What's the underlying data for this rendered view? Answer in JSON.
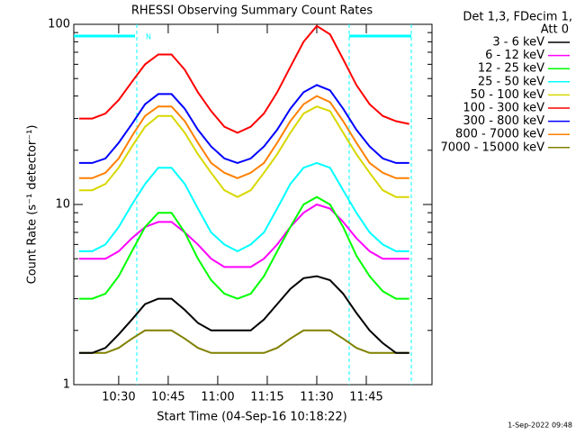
{
  "chart_data": {
    "type": "line",
    "title": "RHESSI Observing Summary Count Rates",
    "x_label": "Start Time (04-Sep-16 10:18:22)",
    "y_label": "Count Rate (s⁻¹ detector⁻¹)",
    "legend_title": [
      "Det 1,3, FDecim 1,",
      "Att 0"
    ],
    "annotation": "N",
    "timestamp": "1-Sep-2022 09:48",
    "log_y": true,
    "legend": "right",
    "xlim": [
      616.4,
      724.9
    ],
    "ylim": [
      1,
      100
    ],
    "xticks": [
      {
        "value": 630,
        "label": "10:30"
      },
      {
        "value": 645,
        "label": "10:45"
      },
      {
        "value": 660,
        "label": "11:00"
      },
      {
        "value": 675,
        "label": "11:15"
      },
      {
        "value": 690,
        "label": "11:30"
      },
      {
        "value": 705,
        "label": "11:45"
      }
    ],
    "yticks": [
      1,
      10,
      100
    ],
    "x": [
      618,
      622,
      626,
      630,
      634,
      638,
      642,
      646,
      650,
      654,
      658,
      662,
      666,
      670,
      674,
      678,
      682,
      686,
      690,
      694,
      698,
      702,
      706,
      710,
      714,
      718
    ],
    "series": [
      {
        "name": "3 - 6 keV",
        "color": "#000000",
        "values": [
          1.5,
          1.5,
          1.6,
          1.9,
          2.3,
          2.8,
          3,
          3,
          2.6,
          2.2,
          2,
          2,
          2,
          2,
          2.3,
          2.8,
          3.4,
          3.9,
          4,
          3.8,
          3.2,
          2.5,
          2,
          1.7,
          1.5,
          1.5
        ]
      },
      {
        "name": "6 - 12 keV",
        "color": "#ff00ff",
        "values": [
          5,
          5,
          5,
          5.5,
          6.5,
          7.5,
          8,
          8,
          7,
          6,
          5,
          4.5,
          4.5,
          4.5,
          5,
          6,
          7.5,
          9,
          10,
          9.5,
          8,
          6.5,
          5.5,
          5,
          5,
          5
        ]
      },
      {
        "name": "12 - 25 keV",
        "color": "#00ff00",
        "values": [
          3,
          3,
          3.2,
          4,
          5.5,
          7.5,
          9,
          9,
          7,
          5,
          3.8,
          3.2,
          3,
          3.2,
          4,
          5.5,
          7.5,
          10,
          11,
          10,
          7.5,
          5.2,
          4,
          3.3,
          3,
          3
        ]
      },
      {
        "name": "25 - 50 keV",
        "color": "#00ffff",
        "values": [
          5.5,
          5.5,
          6,
          7.5,
          10,
          13,
          16,
          16,
          13,
          9.5,
          7,
          6,
          5.5,
          6,
          7,
          9.5,
          13,
          16,
          17,
          16,
          12,
          9,
          7,
          6,
          5.5,
          5.5
        ]
      },
      {
        "name": "50 - 100 keV",
        "color": "#d8d800",
        "values": [
          12,
          12,
          13,
          16,
          21,
          27,
          31,
          31,
          25,
          19,
          15,
          12,
          11,
          12,
          15,
          19,
          25,
          32,
          35,
          33,
          25,
          19,
          15,
          12,
          11,
          11
        ]
      },
      {
        "name": "100 - 300 keV",
        "color": "#ff0000",
        "values": [
          30,
          30,
          32,
          38,
          48,
          60,
          68,
          68,
          56,
          42,
          33,
          27,
          25,
          27,
          32,
          42,
          58,
          80,
          98,
          88,
          64,
          46,
          36,
          31,
          29,
          28
        ]
      },
      {
        "name": "300 - 800 keV",
        "color": "#0000ff",
        "values": [
          17,
          17,
          18,
          22,
          28,
          36,
          41,
          41,
          34,
          26,
          21,
          18,
          17,
          18,
          21,
          26,
          34,
          42,
          46,
          43,
          34,
          26,
          21,
          18,
          17,
          17
        ]
      },
      {
        "name": "800 - 7000 keV",
        "color": "#ff8000",
        "values": [
          14,
          14,
          15,
          18,
          24,
          31,
          35,
          35,
          29,
          22,
          17,
          15,
          14,
          15,
          17,
          22,
          29,
          36,
          40,
          37,
          29,
          22,
          17,
          15,
          14,
          14
        ]
      },
      {
        "name": "7000 - 15000 keV",
        "color": "#808000",
        "values": [
          1.5,
          1.5,
          1.5,
          1.6,
          1.8,
          2,
          2,
          2,
          1.8,
          1.6,
          1.5,
          1.5,
          1.5,
          1.5,
          1.5,
          1.6,
          1.8,
          2,
          2,
          2,
          1.8,
          1.6,
          1.5,
          1.5,
          1.5,
          1.5
        ]
      }
    ]
  }
}
